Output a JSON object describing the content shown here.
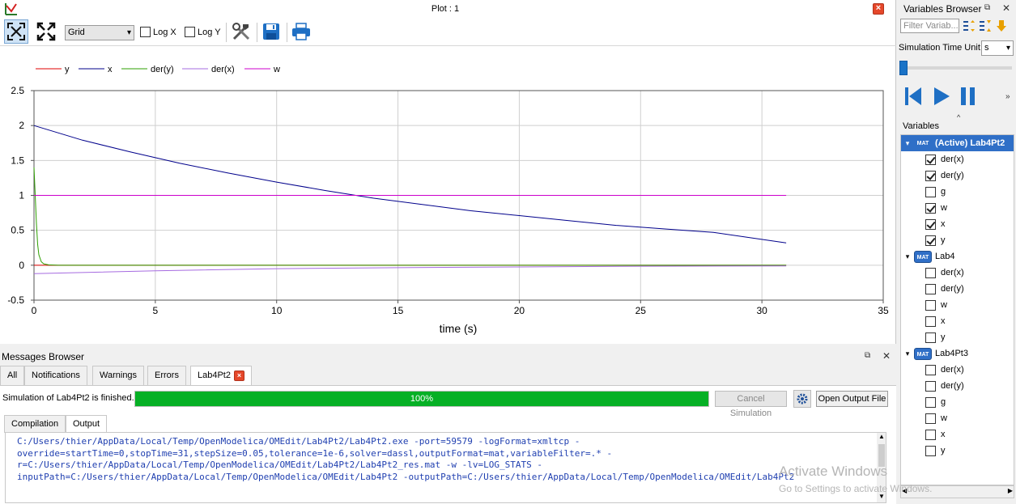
{
  "plot_window": {
    "title": "Plot : 1",
    "toolbar": {
      "grid_option": "Grid",
      "log_x_label": "Log X",
      "log_y_label": "Log Y"
    }
  },
  "chart_data": {
    "type": "line",
    "xlabel": "time (s)",
    "ylabel": "",
    "xlim": [
      0,
      35
    ],
    "ylim": [
      -0.5,
      2.5
    ],
    "x_ticks": [
      "0",
      "5",
      "10",
      "15",
      "20",
      "25",
      "30",
      "35"
    ],
    "y_ticks": [
      "-0.5",
      "0",
      "0.5",
      "1",
      "1.5",
      "2",
      "2.5"
    ],
    "grid": true,
    "legend_position": "top-left",
    "series": [
      {
        "name": "y",
        "color": "#e00000",
        "x": [
          0,
          31
        ],
        "y": [
          0,
          0
        ]
      },
      {
        "name": "x",
        "color": "#00008b",
        "x": [
          0,
          2,
          4,
          6,
          8,
          10,
          12,
          14,
          16,
          18,
          20,
          22,
          24,
          26,
          28,
          31
        ],
        "y": [
          2.0,
          1.79,
          1.62,
          1.46,
          1.32,
          1.19,
          1.07,
          0.96,
          0.87,
          0.78,
          0.71,
          0.64,
          0.57,
          0.52,
          0.47,
          0.32
        ]
      },
      {
        "name": "der(y)",
        "color": "#2e9f00",
        "x": [
          0,
          0.05,
          0.1,
          0.15,
          0.2,
          0.3,
          0.4,
          0.6,
          1.0,
          31
        ],
        "y": [
          1.4,
          1.0,
          0.6,
          0.3,
          0.15,
          0.05,
          0.02,
          0.005,
          0.0,
          0.0
        ]
      },
      {
        "name": "der(x)",
        "color": "#a66be0",
        "x": [
          0,
          5,
          10,
          15,
          20,
          25,
          31
        ],
        "y": [
          -0.12,
          -0.08,
          -0.05,
          -0.035,
          -0.025,
          -0.015,
          -0.01
        ]
      },
      {
        "name": "w",
        "color": "#cc00cc",
        "x": [
          0,
          31
        ],
        "y": [
          1,
          1
        ]
      }
    ]
  },
  "messages": {
    "title": "Messages Browser",
    "tabs": [
      "All",
      "Notifications",
      "Warnings",
      "Errors",
      "Lab4Pt2"
    ],
    "status_text": "Simulation of Lab4Pt2 is finished.",
    "progress_percent": 100,
    "progress_label": "100%",
    "cancel_label": "Cancel Simulation",
    "open_output_label": "Open Output File",
    "sub_tabs": [
      "Compilation",
      "Output"
    ],
    "output_text": "C:/Users/thier/AppData/Local/Temp/OpenModelica/OMEdit/Lab4Pt2/Lab4Pt2.exe -port=59579 -logFormat=xmltcp -override=startTime=0,stopTime=31,stepSize=0.05,tolerance=1e-6,solver=dassl,outputFormat=mat,variableFilter=.* -r=C:/Users/thier/AppData/Local/Temp/OpenModelica/OMEdit/Lab4Pt2/Lab4Pt2_res.mat -w -lv=LOG_STATS -inputPath=C:/Users/thier/AppData/Local/Temp/OpenModelica/OMEdit/Lab4Pt2 -outputPath=C:/Users/thier/AppData/Local/Temp/OpenModelica/OMEdit/Lab4Pt2"
  },
  "variables_browser": {
    "title": "Variables Browser",
    "filter_placeholder": "Filter Variab...",
    "sim_time_unit_label": "Simulation Time Unit",
    "sim_time_unit": "s",
    "variables_label": "Variables",
    "models": [
      {
        "label": "(Active) Lab4Pt2",
        "badge": "MAT",
        "active": true,
        "vars": [
          {
            "name": "der(x)",
            "checked": true
          },
          {
            "name": "der(y)",
            "checked": true
          },
          {
            "name": "g",
            "checked": false
          },
          {
            "name": "w",
            "checked": true
          },
          {
            "name": "x",
            "checked": true
          },
          {
            "name": "y",
            "checked": true
          }
        ]
      },
      {
        "label": "Lab4",
        "badge": "MAT",
        "active": false,
        "vars": [
          {
            "name": "der(x)",
            "checked": false
          },
          {
            "name": "der(y)",
            "checked": false
          },
          {
            "name": "w",
            "checked": false
          },
          {
            "name": "x",
            "checked": false
          },
          {
            "name": "y",
            "checked": false
          }
        ]
      },
      {
        "label": "Lab4Pt3",
        "badge": "MAT",
        "active": false,
        "vars": [
          {
            "name": "der(x)",
            "checked": false
          },
          {
            "name": "der(y)",
            "checked": false
          },
          {
            "name": "g",
            "checked": false
          },
          {
            "name": "w",
            "checked": false
          },
          {
            "name": "x",
            "checked": false
          },
          {
            "name": "y",
            "checked": false
          }
        ]
      }
    ]
  },
  "watermark": {
    "title": "Activate Windows",
    "subtitle": "Go to Settings to activate Windows."
  }
}
